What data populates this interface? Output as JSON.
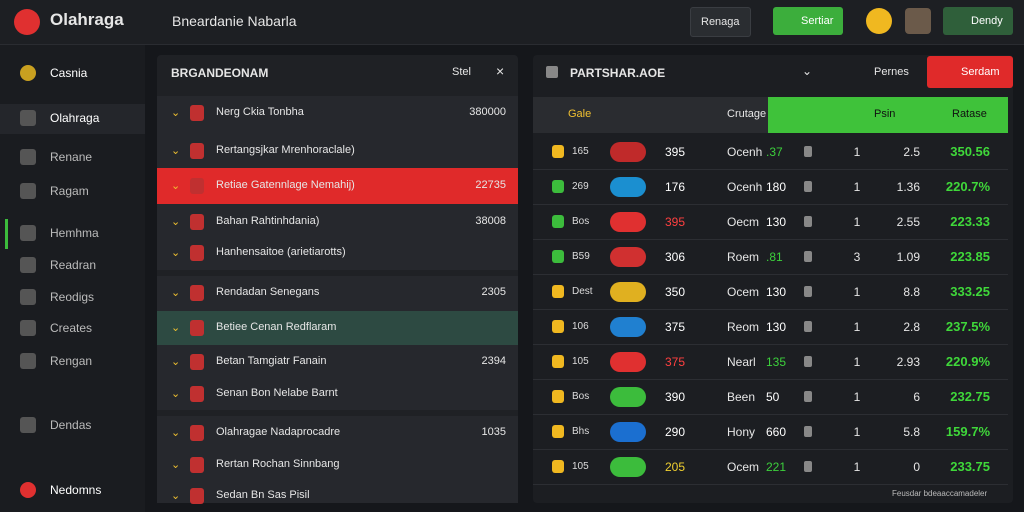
{
  "header": {
    "logo": "Olahraga",
    "subtitle": "Bneardanie Nabarla",
    "buttons": [
      "Renaga",
      "Sertiar",
      "Dendy"
    ]
  },
  "sidebar": {
    "items": [
      "Casnia",
      "Olahraga",
      "Renane",
      "Ragam",
      "Hemhma",
      "Readran",
      "Reodigs",
      "Creates",
      "Rengan",
      "Dendas",
      "Nedomns"
    ]
  },
  "left_panel": {
    "title": "BRGANDEONAM",
    "search": "Stel",
    "groups": [
      {
        "rows": [
          {
            "label": "Nerg Ckia Tonbha",
            "value": "380000"
          },
          {
            "label": "Rertangsjkar Mrenhoraclale)"
          },
          {
            "label": "Retiae Gatennlage Nemahij)",
            "value": "22735"
          },
          {
            "label": "Bahan Rahtinhdania)",
            "value": "38008"
          },
          {
            "label": "Hanhensaitoe (arietiarotts)"
          }
        ]
      },
      {
        "rows": [
          {
            "label": "Rendadan Senegans",
            "value": "2305"
          },
          {
            "label": "Betiee Cenan Redflaram"
          },
          {
            "label": "Betan Tamgiatr Fanain",
            "value": "2394"
          },
          {
            "label": "Senan Bon Nelabe Barnt"
          }
        ]
      },
      {
        "rows": [
          {
            "label": "Olahragae Nadaprocadre",
            "value": "1035"
          },
          {
            "label": "Rertan Rochan Sinnbang"
          },
          {
            "label": "Sedan Bn Sas Pisil"
          }
        ]
      }
    ]
  },
  "right_panel": {
    "title": "PARTSHAR.AOE",
    "buttons": [
      "Pernes",
      "Serdam"
    ],
    "table": {
      "header": [
        "Gale",
        "Crutage",
        "Psin",
        "Ratase"
      ],
      "rows": [
        [
          "165",
          "395",
          "Ocenh",
          ".37",
          "1",
          "2.5",
          "350.56"
        ],
        [
          "269",
          "176",
          "Ocenh",
          "180",
          "1",
          "1.36",
          "220.7%"
        ],
        [
          "Bos",
          "395",
          "Oecm",
          "130",
          "1",
          "2.55",
          "223.33"
        ],
        [
          "B59",
          "306",
          "Roem",
          ".81",
          "3",
          "1.09",
          "223.85"
        ],
        [
          "Dest",
          "350",
          "Ocem",
          "130",
          "1",
          "8.8",
          "333.25"
        ],
        [
          "106",
          "375",
          "Reom",
          "130",
          "1",
          "2.8",
          "237.5%"
        ],
        [
          "105",
          "375",
          "Nearl",
          "135",
          "1",
          "2.93",
          "220.9%"
        ],
        [
          "Bos",
          "390",
          "Been",
          "50",
          "1",
          "6",
          "232.75"
        ],
        [
          "Bhs",
          "290",
          "Hony",
          "660",
          "1",
          "5.8",
          "159.7%"
        ],
        [
          "105",
          "205",
          "Ocem",
          "221",
          "1",
          "0",
          "233.75"
        ]
      ]
    },
    "note": "Feusdar bdeaaccamadeler"
  }
}
